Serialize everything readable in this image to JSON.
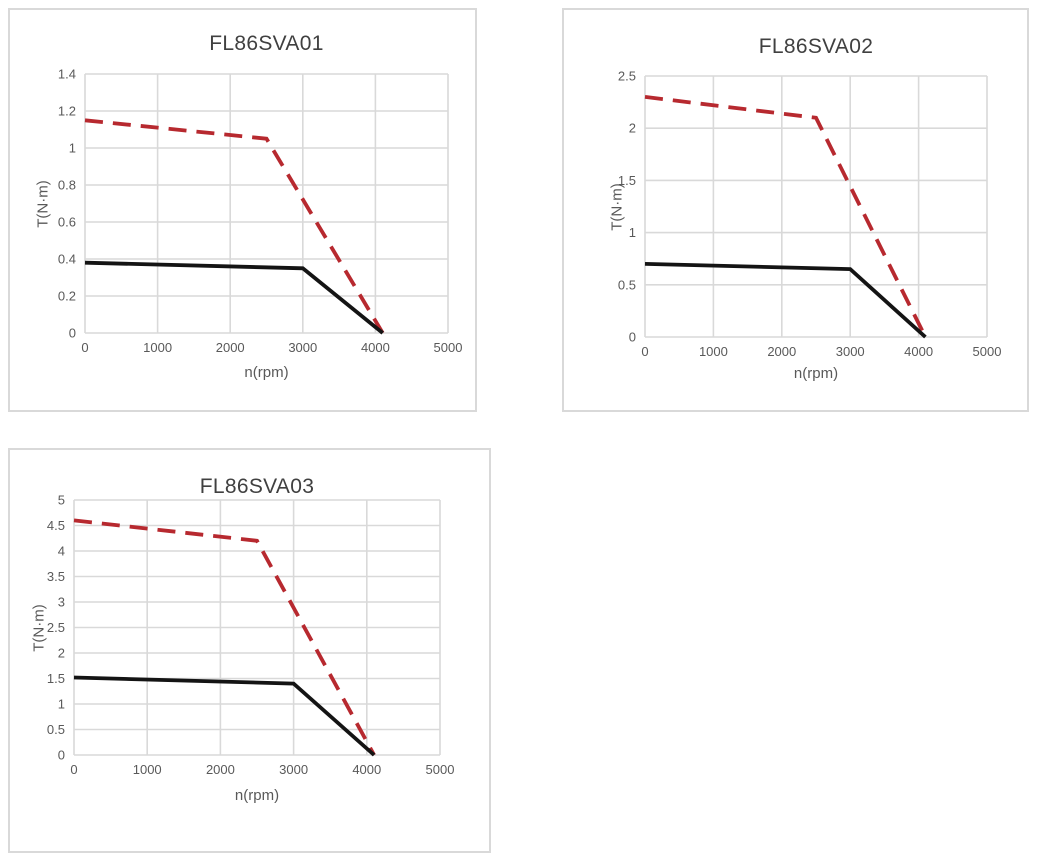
{
  "colors": {
    "background": "#ffffff",
    "panel_border": "#d9d9d9",
    "grid": "#d9d9d9",
    "axis": "#d9d9d9",
    "tick_label": "#595959",
    "title": "#404040",
    "peak_line": "#b7292f",
    "rated_line": "#141414"
  },
  "chart_data": [
    {
      "id": "FL86SVA01",
      "type": "line",
      "title": "FL86SVA01",
      "xlabel": "n(rpm)",
      "ylabel": "T(N·m)",
      "xlim": [
        0,
        5000
      ],
      "ylim": [
        0,
        1.4
      ],
      "xticks": [
        0,
        1000,
        2000,
        3000,
        4000,
        5000
      ],
      "xtick_labels": [
        "0",
        "1000",
        "2000",
        "3000",
        "4000",
        "5000"
      ],
      "yticks": [
        0,
        0.2,
        0.4,
        0.6,
        0.8,
        1,
        1.2,
        1.4
      ],
      "ytick_labels": [
        "0",
        "0.2",
        "0.4",
        "0.6",
        "0.8",
        "1",
        "1.2",
        "1.4"
      ],
      "grid": true,
      "legend": "none",
      "series": [
        {
          "name": "peak-torque-dashed-red",
          "color": "#b7292f",
          "style": "dashed",
          "points": [
            [
              0,
              1.15
            ],
            [
              2500,
              1.05
            ],
            [
              4100,
              0
            ]
          ]
        },
        {
          "name": "rated-torque-solid-black",
          "color": "#141414",
          "style": "solid",
          "points": [
            [
              0,
              0.38
            ],
            [
              3000,
              0.35
            ],
            [
              4100,
              0
            ]
          ]
        }
      ]
    },
    {
      "id": "FL86SVA02",
      "type": "line",
      "title": "FL86SVA02",
      "xlabel": "n(rpm)",
      "ylabel": "T(N·m)",
      "xlim": [
        0,
        5000
      ],
      "ylim": [
        0,
        2.5
      ],
      "xticks": [
        0,
        1000,
        2000,
        3000,
        4000,
        5000
      ],
      "xtick_labels": [
        "0",
        "1000",
        "2000",
        "3000",
        "4000",
        "5000"
      ],
      "yticks": [
        0,
        0.5,
        1,
        1.5,
        2,
        2.5
      ],
      "ytick_labels": [
        "0",
        "0.5",
        "1",
        "1.5",
        "2",
        "2.5"
      ],
      "grid": true,
      "legend": "none",
      "series": [
        {
          "name": "peak-torque-dashed-red",
          "color": "#b7292f",
          "style": "dashed",
          "points": [
            [
              0,
              2.3
            ],
            [
              2500,
              2.1
            ],
            [
              4100,
              0
            ]
          ]
        },
        {
          "name": "rated-torque-solid-black",
          "color": "#141414",
          "style": "solid",
          "points": [
            [
              0,
              0.7
            ],
            [
              3000,
              0.65
            ],
            [
              4100,
              0
            ]
          ]
        }
      ]
    },
    {
      "id": "FL86SVA03",
      "type": "line",
      "title": "FL86SVA03",
      "xlabel": "n(rpm)",
      "ylabel": "T(N·m)",
      "xlim": [
        0,
        5000
      ],
      "ylim": [
        0,
        5
      ],
      "xticks": [
        0,
        1000,
        2000,
        3000,
        4000,
        5000
      ],
      "xtick_labels": [
        "0",
        "1000",
        "2000",
        "3000",
        "4000",
        "5000"
      ],
      "yticks": [
        0,
        0.5,
        1,
        1.5,
        2,
        2.5,
        3,
        3.5,
        4,
        4.5,
        5
      ],
      "ytick_labels": [
        "0",
        "0.5",
        "1",
        "1.5",
        "2",
        "2.5",
        "3",
        "3.5",
        "4",
        "4.5",
        "5"
      ],
      "grid": true,
      "legend": "none",
      "series": [
        {
          "name": "peak-torque-dashed-red",
          "color": "#b7292f",
          "style": "dashed",
          "points": [
            [
              0,
              4.6
            ],
            [
              2500,
              4.2
            ],
            [
              4100,
              0
            ]
          ]
        },
        {
          "name": "rated-torque-solid-black",
          "color": "#141414",
          "style": "solid",
          "points": [
            [
              0,
              1.52
            ],
            [
              3000,
              1.4
            ],
            [
              4100,
              0
            ]
          ]
        }
      ]
    }
  ]
}
